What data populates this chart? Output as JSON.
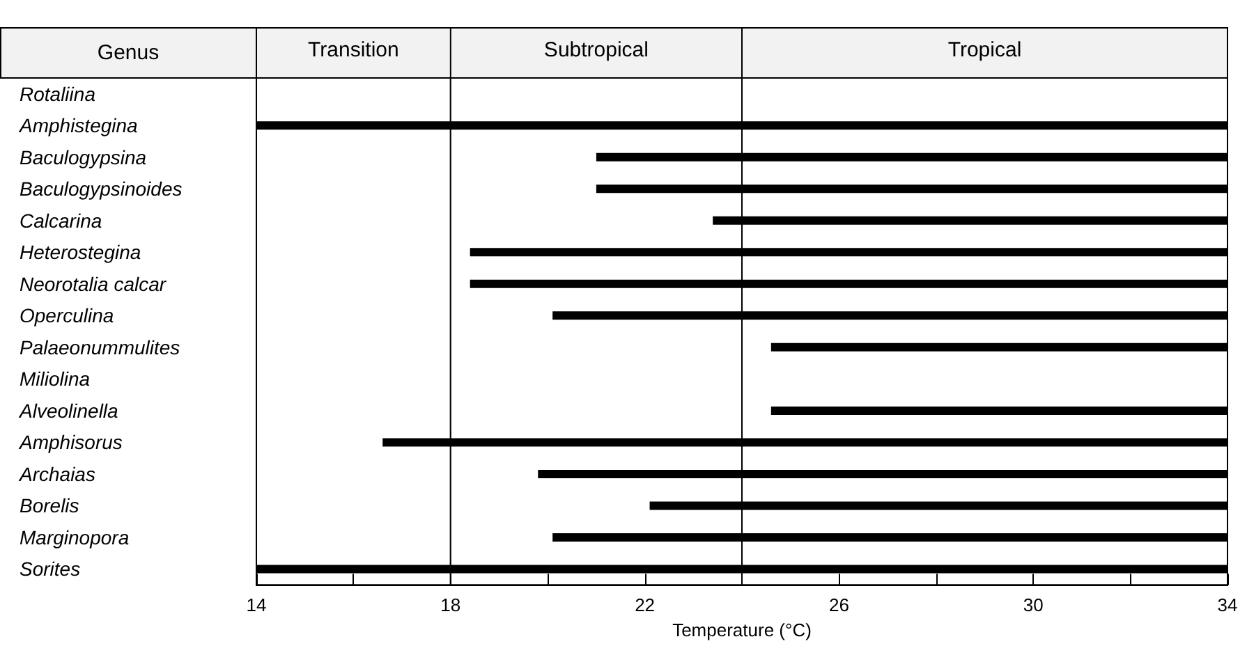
{
  "chart_data": {
    "type": "bar",
    "orientation": "horizontal",
    "ylabel": "Genus",
    "xlabel": "Temperature (°C)",
    "categories": [
      "Rotaliina",
      "Amphistegina",
      "Baculogypsina",
      "Baculogypsinoides",
      "Calcarina",
      "Heterostegina",
      "Neorotalia calcar",
      "Operculina",
      "Palaeonummulites",
      "Miliolina",
      "Alveolinella",
      "Amphisorus",
      "Archaias",
      "Borelis",
      "Marginopora",
      "Sorites"
    ],
    "base": [
      null,
      14,
      21.0,
      21.0,
      23.4,
      18.4,
      18.4,
      20.1,
      24.6,
      null,
      24.6,
      16.6,
      19.8,
      22.1,
      20.1,
      14
    ],
    "values": [
      null,
      20,
      13.0,
      13.0,
      10.6,
      15.6,
      15.6,
      13.9,
      9.4,
      null,
      9.4,
      17.4,
      14.2,
      11.9,
      13.9,
      20
    ],
    "color": "#000000",
    "xlim": [
      14,
      34
    ],
    "xticks": [
      14,
      {
        "value": 16,
        "label": null
      },
      18,
      {
        "value": 20,
        "label": null
      },
      22,
      {
        "value": 24,
        "label": null
      },
      26,
      {
        "value": 28,
        "label": null
      },
      30,
      {
        "value": 32,
        "label": null
      },
      34
    ],
    "bands": [
      {
        "axis": "x",
        "from": 14,
        "to": 18,
        "label": "Transition",
        "color": "#ffffff"
      },
      {
        "axis": "x",
        "from": 18,
        "to": 24,
        "label": "Subtropical",
        "color": "#ffffff"
      },
      {
        "axis": "x",
        "from": 24,
        "to": 34,
        "label": "Tropical",
        "color": "#ffffff"
      }
    ],
    "grid": false
  }
}
